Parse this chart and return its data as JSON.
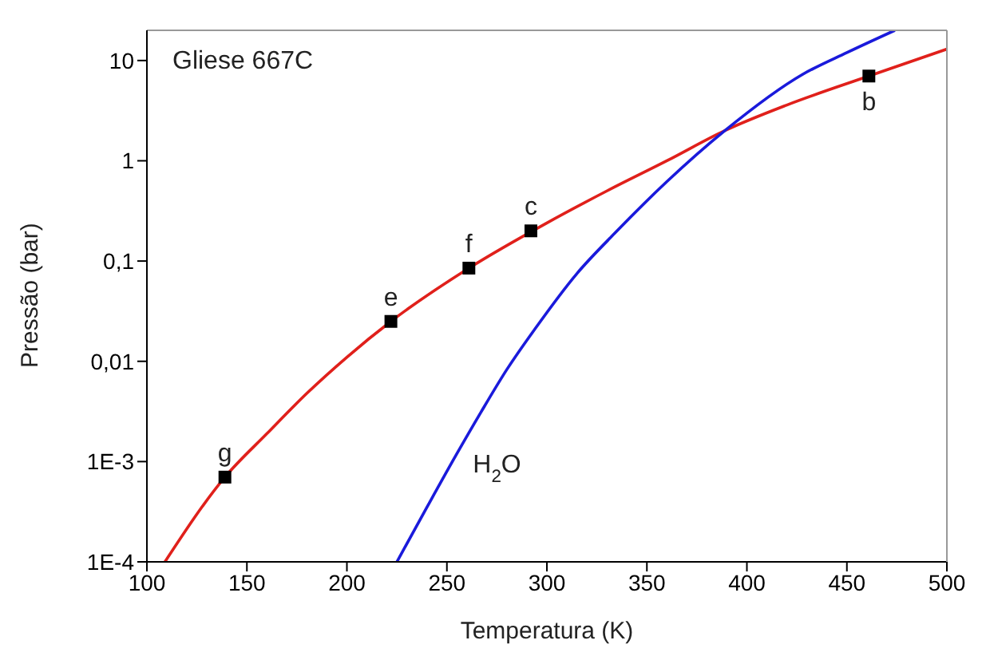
{
  "chart_data": {
    "type": "line",
    "xlabel": "Temperatura (K)",
    "ylabel": "Pressão (bar)",
    "log": "y",
    "xlim": [
      100,
      500
    ],
    "xticks": [
      100,
      150,
      200,
      250,
      300,
      350,
      400,
      450,
      500
    ],
    "ylim": [
      0.0001,
      20
    ],
    "yticks": [
      {
        "value": 0.0001,
        "label": "1E-4"
      },
      {
        "value": 0.001,
        "label": "1E-3"
      },
      {
        "value": 0.01,
        "label": "0,01"
      },
      {
        "value": 0.1,
        "label": "0,1"
      },
      1,
      10
    ],
    "grid": false,
    "legend": false,
    "series": [
      {
        "color": "#e0201b",
        "marker": "none",
        "x": [
          109,
          139,
          160,
          180,
          200,
          222,
          261,
          300,
          330,
          360,
          389,
          420,
          461,
          500
        ],
        "values": [
          0.0001,
          0.0007,
          0.0019,
          0.0048,
          0.011,
          0.025,
          0.085,
          0.24,
          0.5,
          1,
          2,
          3.6,
          7,
          13
        ]
      },
      {
        "name": "H$_{2}$O",
        "color": "#1a1adb",
        "marker": "none",
        "x": [
          225,
          240,
          255,
          267,
          280,
          294,
          315,
          334,
          360,
          389,
          428,
          450,
          474
        ],
        "values": [
          0.0001,
          0.00035,
          0.0012,
          0.0031,
          0.0083,
          0.021,
          0.075,
          0.19,
          0.62,
          2,
          7.3,
          12,
          20
        ]
      },
      {
        "type": "scatter",
        "color": "#000000",
        "marker": "square",
        "x": [
          139,
          222,
          261,
          292,
          461
        ],
        "values": [
          0.0007,
          0.025,
          0.085,
          0.2,
          7
        ]
      }
    ],
    "annotations": [
      "Gliese 667C",
      {
        "text": "g",
        "x": 139,
        "y": 0.0007
      },
      {
        "text": "e",
        "x": 222,
        "y": 0.025
      },
      {
        "text": "f",
        "x": 261,
        "y": 0.085
      },
      {
        "text": "c",
        "x": 292,
        "y": 0.2
      },
      {
        "text": "b",
        "x": 461,
        "y": 7
      }
    ]
  }
}
